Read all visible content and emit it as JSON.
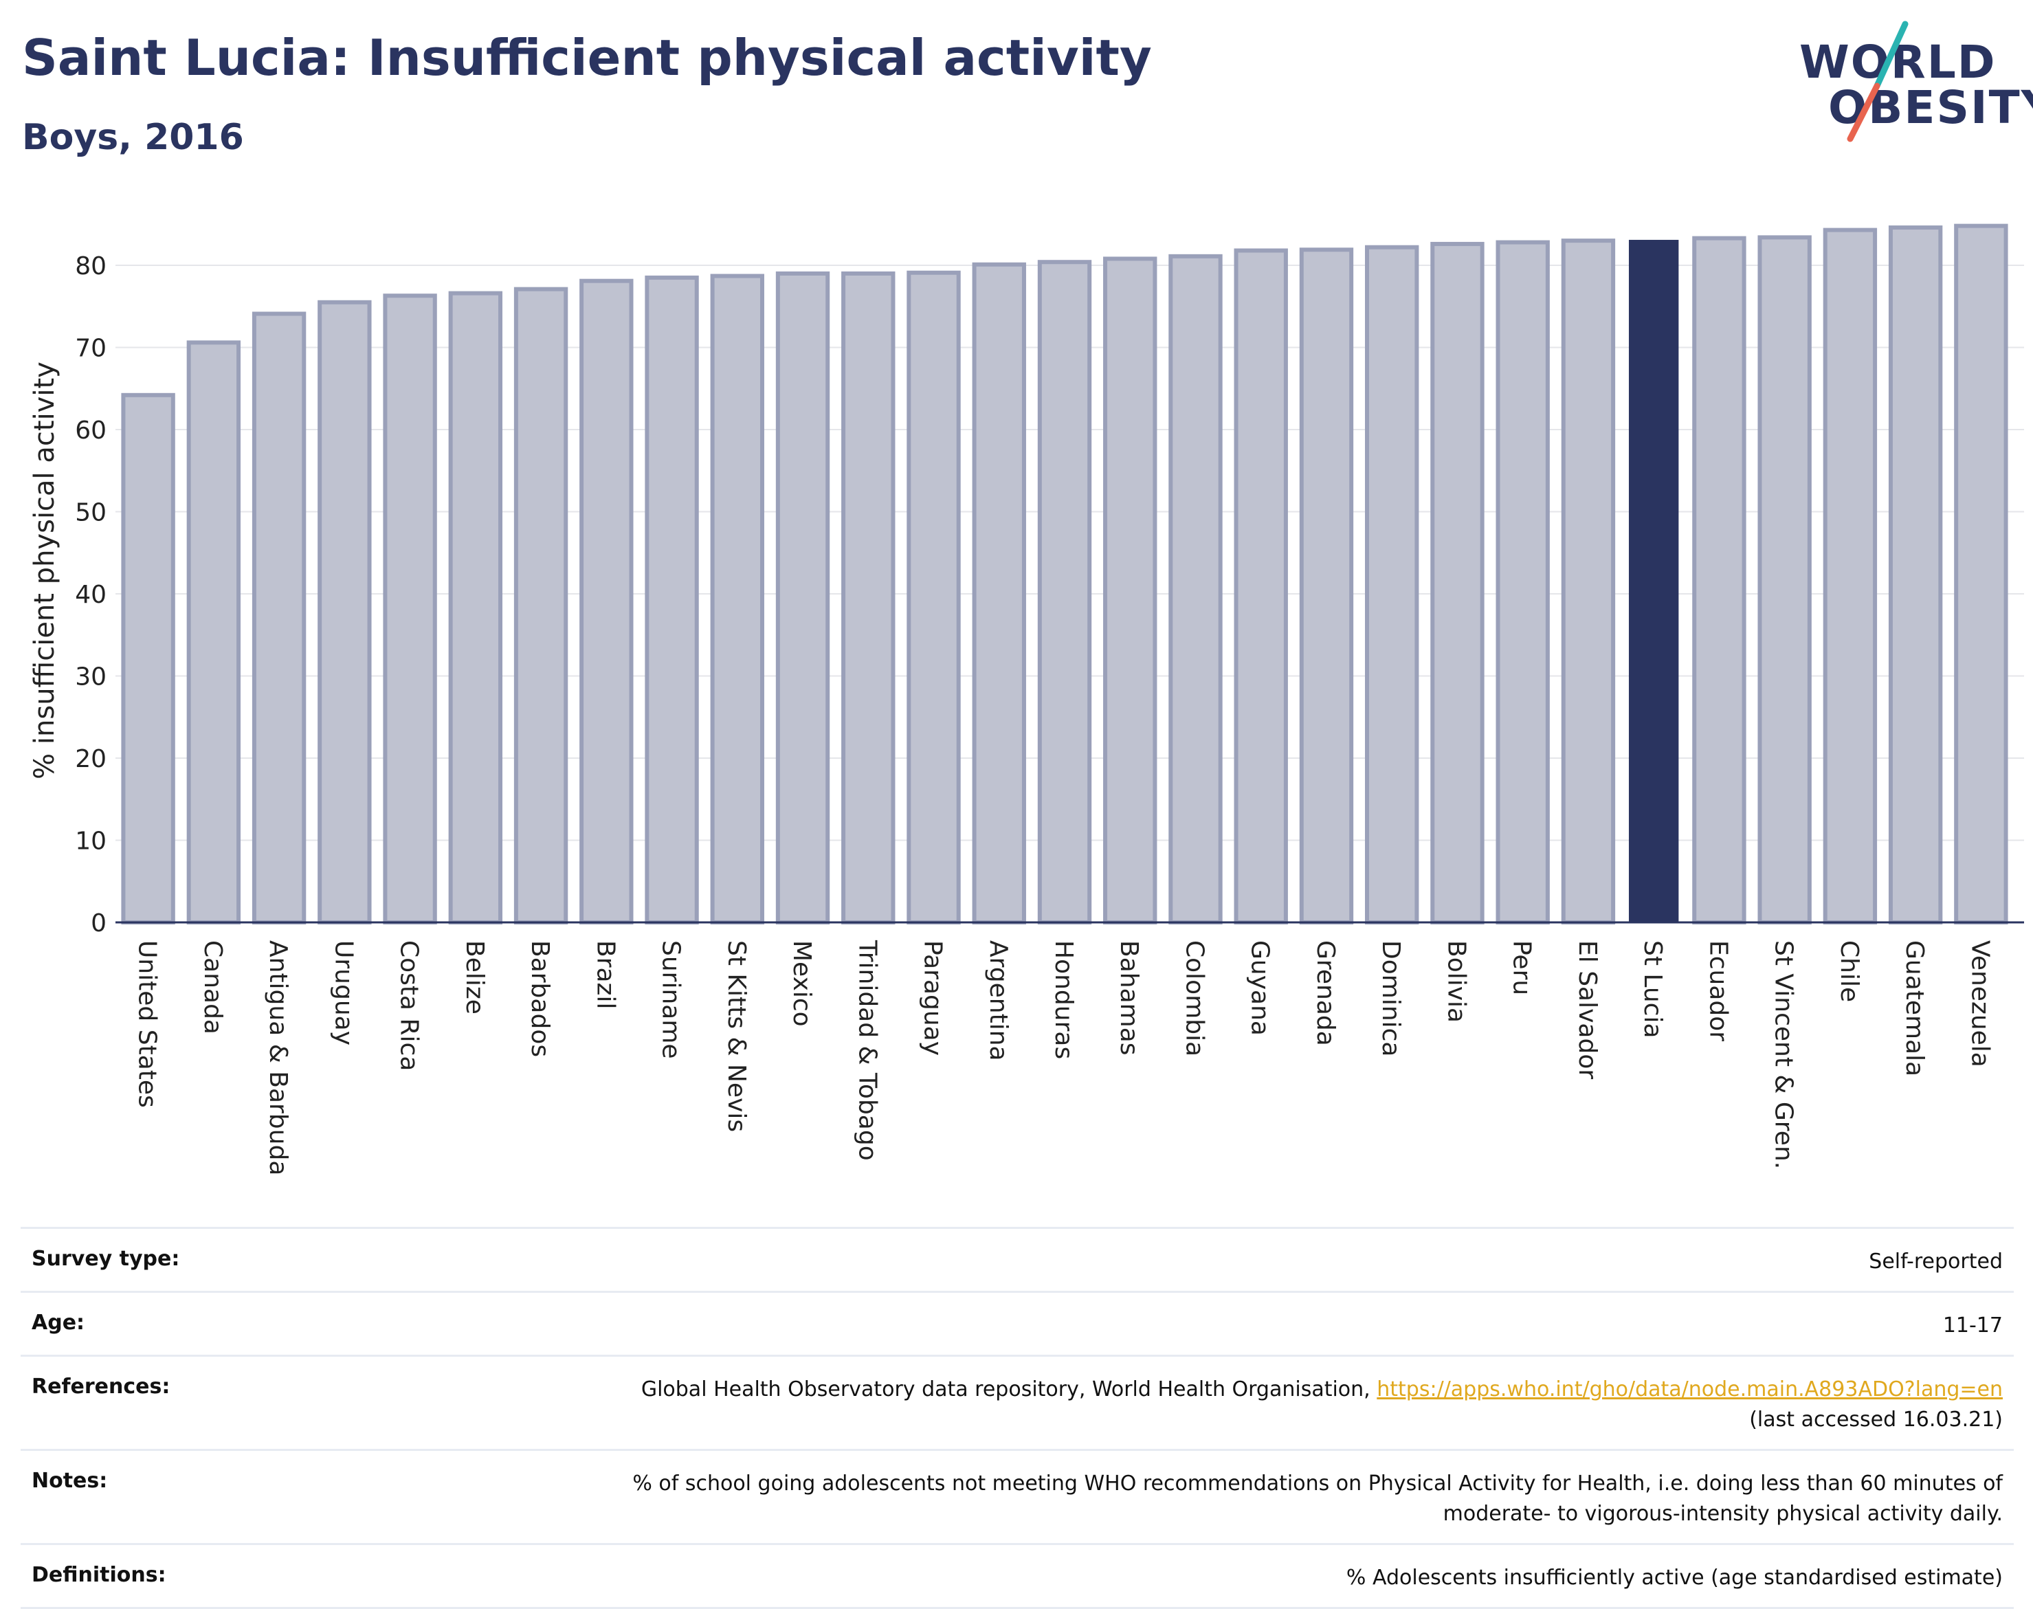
{
  "header": {
    "title": "Saint Lucia: Insufficient physical activity",
    "subtitle": "Boys, 2016"
  },
  "logo": {
    "line1": "WORLD",
    "line2": "OBESITY",
    "accent_colors": [
      "#2ab3b1",
      "#e8644f"
    ]
  },
  "colors": {
    "bar_default": "#bfc2d0",
    "bar_default_border": "#9aa0b9",
    "bar_highlight": "#2a3460",
    "axis": "#2a3460",
    "grid": "#e5e6ea",
    "link": "#e0a81e"
  },
  "chart_data": {
    "type": "bar",
    "title": "Saint Lucia: Insufficient physical activity",
    "subtitle": "Boys, 2016",
    "ylabel": "% insufficient physical activity",
    "xlabel": "",
    "ylim": [
      0,
      85
    ],
    "yticks": [
      0,
      10,
      20,
      30,
      40,
      50,
      60,
      70,
      80
    ],
    "grid": true,
    "highlight": "St Lucia",
    "categories": [
      "United States",
      "Canada",
      "Antigua & Barbuda",
      "Uruguay",
      "Costa Rica",
      "Belize",
      "Barbados",
      "Brazil",
      "Suriname",
      "St Kitts & Nevis",
      "Mexico",
      "Trinidad & Tobago",
      "Paraguay",
      "Argentina",
      "Honduras",
      "Bahamas",
      "Colombia",
      "Guyana",
      "Grenada",
      "Dominica",
      "Bolivia",
      "Peru",
      "El Salvador",
      "St Lucia",
      "Ecuador",
      "St Vincent & Gren.",
      "Chile",
      "Guatemala",
      "Venezuela"
    ],
    "values": [
      64.2,
      70.6,
      74.1,
      75.5,
      76.3,
      76.6,
      77.1,
      78.1,
      78.5,
      78.7,
      79.0,
      79.0,
      79.1,
      80.1,
      80.4,
      80.8,
      81.1,
      81.8,
      81.9,
      82.2,
      82.6,
      82.8,
      83.0,
      83.1,
      83.3,
      83.4,
      84.3,
      84.6,
      84.8
    ]
  },
  "info": {
    "survey_type_label": "Survey type:",
    "survey_type_value": "Self-reported",
    "age_label": "Age:",
    "age_value": "11-17",
    "references_label": "References:",
    "references_text": "Global Health Observatory data repository, World Health Organisation,",
    "references_link": "https://apps.who.int/gho/data/node.main.A893ADO?lang=en",
    "references_accessed": "(last accessed 16.03.21)",
    "notes_label": "Notes:",
    "notes_line1": "% of school going adolescents not meeting WHO recommendations on Physical Activity for Health, i.e. doing less than 60 minutes of",
    "notes_line2": "moderate- to vigorous-intensity physical activity daily.",
    "definitions_label": "Definitions:",
    "definitions_value": "% Adolescents insufficiently active (age standardised estimate)"
  }
}
